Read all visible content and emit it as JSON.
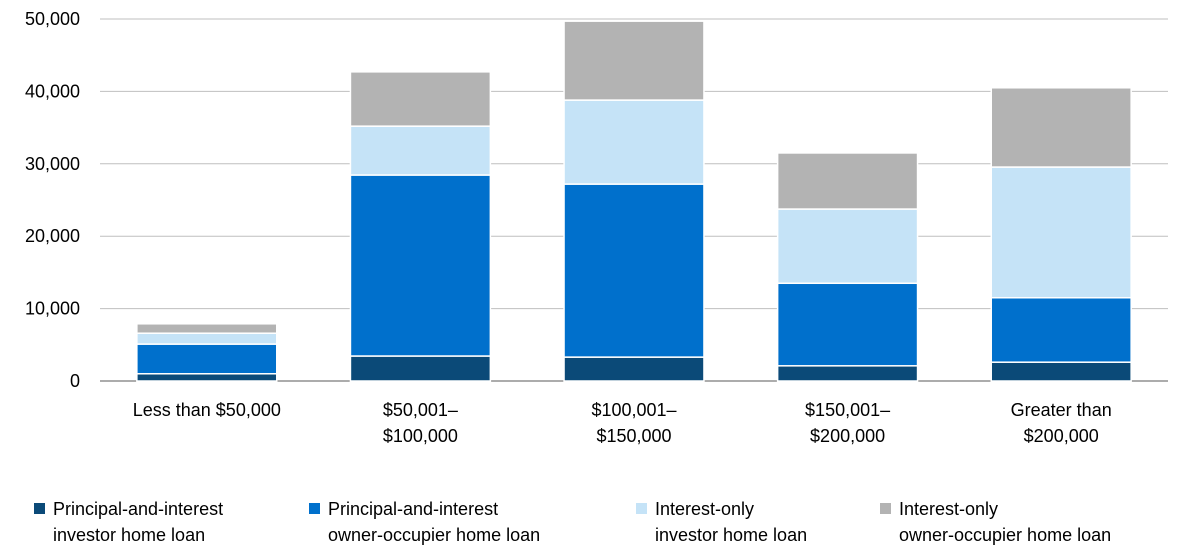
{
  "chart_data": {
    "type": "stacked_bar",
    "categories": [
      "Less than $50,000",
      "$50,001–\n$100,000",
      "$100,001–\n$150,000",
      "$150,001–\n$200,000",
      "Greater than\n$200,000"
    ],
    "series": [
      {
        "name": "Principal-and-interest\ninvestor home loan",
        "color": "#0b4a78",
        "values": [
          1000,
          3450,
          3300,
          2100,
          2600
        ]
      },
      {
        "name": "Principal-and-interest\nowner-occupier home loan",
        "color": "#0070cc",
        "values": [
          4100,
          25000,
          23900,
          11400,
          8900
        ]
      },
      {
        "name": "Interest-only\ninvestor home loan",
        "color": "#c5e3f7",
        "values": [
          1500,
          6750,
          11600,
          10250,
          18050
        ]
      },
      {
        "name": "Interest-only\nowner-occupier home loan",
        "color": "#b3b3b3",
        "values": [
          1300,
          7500,
          10900,
          7750,
          10950
        ]
      }
    ],
    "ylim": [
      0,
      50000
    ],
    "yticks": [
      0,
      {
        "value": 10000,
        "label": "10,000"
      },
      {
        "value": 20000,
        "label": "20,000"
      },
      {
        "value": 30000,
        "label": "30,000"
      },
      {
        "value": 40000,
        "label": "40,000"
      },
      {
        "value": 50000,
        "label": "50,000"
      }
    ],
    "grid": true
  }
}
